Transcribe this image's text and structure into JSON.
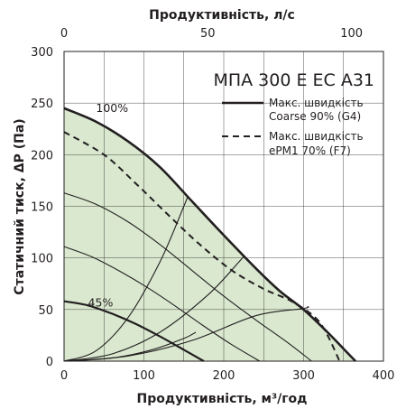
{
  "chart_data": {
    "type": "line",
    "model_label": "МПА 300 E EC A31",
    "xlabel": "Продуктивність, м³/год",
    "x2label": "Продуктивність, л/с",
    "ylabel": "Статичний тиск, ΔP (Па)",
    "xlim": [
      0,
      400
    ],
    "x2lim": [
      0,
      111.1
    ],
    "ylim": [
      0,
      300
    ],
    "x_ticks": [
      0,
      100,
      200,
      300,
      400
    ],
    "x2_ticks": [
      0,
      50,
      100
    ],
    "y_ticks": [
      0,
      50,
      100,
      150,
      200,
      250,
      300
    ],
    "grid": true,
    "legend_position": "top-right",
    "series": [
      {
        "name": "Макс. швидкість Coarse 90% (G4)",
        "style": "solid",
        "label": "100%",
        "x": [
          0,
          40,
          80,
          120,
          160,
          200,
          240,
          270,
          300,
          330,
          350,
          365
        ],
        "y": [
          245,
          232,
          213,
          188,
          155,
          122,
          90,
          68,
          50,
          28,
          12,
          0
        ]
      },
      {
        "name": "Макс. швидкість ePM1 70% (F7)",
        "style": "dashed",
        "x": [
          0,
          50,
          90,
          130,
          170,
          210,
          250,
          285,
          315,
          330,
          345
        ],
        "y": [
          222,
          200,
          172,
          142,
          113,
          88,
          70,
          58,
          42,
          25,
          0
        ]
      },
      {
        "label": "45%",
        "style": "solid",
        "x": [
          0,
          30,
          60,
          90,
          120,
          150,
          175
        ],
        "y": [
          58,
          54,
          46,
          36,
          24,
          11,
          0
        ]
      }
    ],
    "intermediate_curves": [
      {
        "x": [
          0,
          40,
          80,
          120,
          160,
          200,
          240,
          280,
          310
        ],
        "y": [
          163,
          152,
          135,
          113,
          88,
          63,
          40,
          18,
          0
        ]
      },
      {
        "x": [
          0,
          35,
          70,
          105,
          140,
          175,
          210,
          245
        ],
        "y": [
          111,
          101,
          87,
          71,
          53,
          34,
          16,
          0
        ]
      }
    ],
    "system_curves": [
      {
        "x": [
          0,
          40,
          80,
          120,
          150,
          155
        ],
        "y": [
          0,
          10,
          42,
          96,
          150,
          160
        ]
      },
      {
        "x": [
          0,
          60,
          120,
          180,
          220,
          225
        ],
        "y": [
          0,
          7,
          28,
          64,
          97,
          102
        ]
      },
      {
        "x": [
          0,
          80,
          160,
          240,
          300,
          305
        ],
        "y": [
          0,
          5,
          20,
          44,
          51,
          53
        ]
      },
      {
        "x": [
          0,
          60,
          110,
          150,
          165
        ],
        "y": [
          0,
          3,
          11,
          22,
          28
        ]
      }
    ],
    "legend": [
      {
        "style": "solid",
        "line1": "Макс. швидкість",
        "line2": "Coarse 90% (G4)"
      },
      {
        "style": "dashed",
        "line1": "Макс. швидкість",
        "line2": "ePM1 70% (F7)"
      }
    ],
    "colors": {
      "fill": "#d9e8cf",
      "grid": "#231f20",
      "curves": "#231f20"
    }
  }
}
